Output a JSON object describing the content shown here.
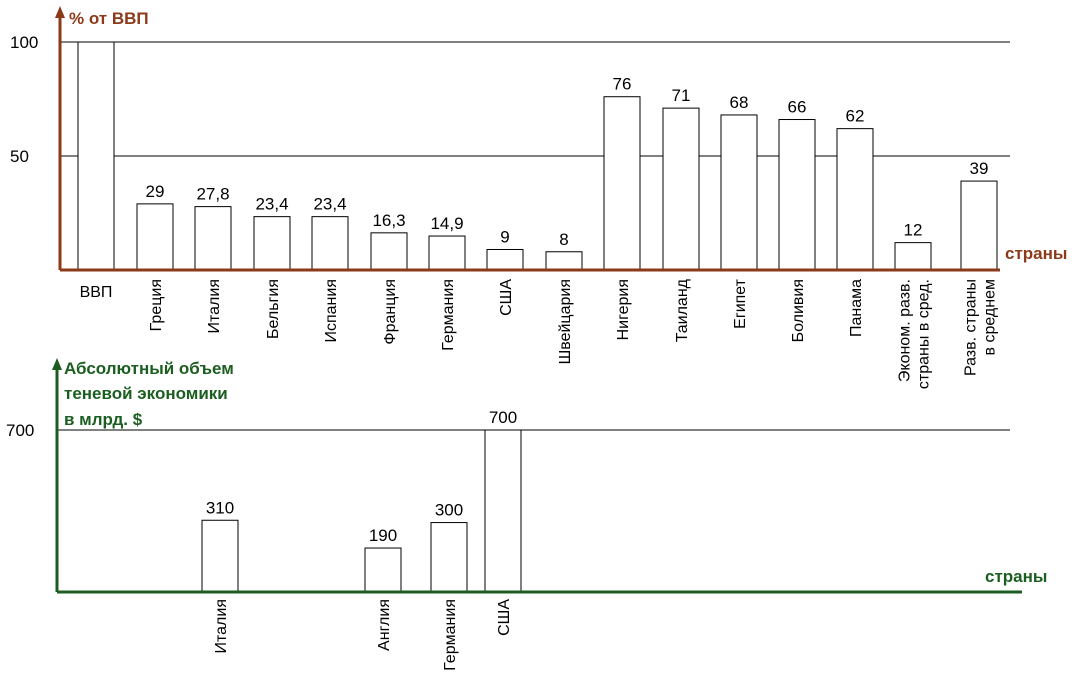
{
  "colors": {
    "top_axis": "#8b3a1a",
    "bottom_axis": "#1b5e20",
    "grid": "#000000",
    "bar_fill": "#ffffff",
    "bar_stroke": "#000000"
  },
  "chart_data": [
    {
      "type": "bar",
      "ylabel": "% от ВВП",
      "xlabel": "страны",
      "ylim": [
        0,
        100
      ],
      "yticks": [
        50,
        100
      ],
      "grid": true,
      "categories": [
        "ВВП",
        "Греция",
        "Италия",
        "Бельгия",
        "Испания",
        "Франция",
        "Германия",
        "США",
        "Швейцария",
        "Нигерия",
        "Таиланд",
        "Египет",
        "Боливия",
        "Панама",
        "Эконом. разв. страны в сред.",
        "Разв. страны в среднем"
      ],
      "category_lines": [
        [
          "ВВП"
        ],
        [
          "Греция"
        ],
        [
          "Италия"
        ],
        [
          "Бельгия"
        ],
        [
          "Испания"
        ],
        [
          "Франция"
        ],
        [
          "Германия"
        ],
        [
          "США"
        ],
        [
          "Швейцария"
        ],
        [
          "Нигерия"
        ],
        [
          "Таиланд"
        ],
        [
          "Египет"
        ],
        [
          "Боливия"
        ],
        [
          "Панама"
        ],
        [
          "Эконом. разв.",
          "страны в сред."
        ],
        [
          "Разв. страны",
          "в среднем"
        ]
      ],
      "values": [
        100,
        29,
        27.8,
        23.4,
        23.4,
        16.3,
        14.9,
        9,
        8,
        76,
        71,
        68,
        66,
        62,
        12,
        39
      ],
      "value_labels": [
        "",
        "29",
        "27,8",
        "23,4",
        "23,4",
        "16,3",
        "14,9",
        "9",
        "8",
        "76",
        "71",
        "68",
        "66",
        "62",
        "12",
        "39"
      ]
    },
    {
      "type": "bar",
      "ylabel_lines": [
        "Абсолютный объем",
        "теневой экономики",
        "в млрд. $"
      ],
      "xlabel": "страны",
      "ylim": [
        0,
        700
      ],
      "yticks": [
        700
      ],
      "grid": true,
      "categories": [
        "Италия",
        "Англия",
        "Германия",
        "США"
      ],
      "category_lines": [
        [
          "Италия"
        ],
        [
          "Англия"
        ],
        [
          "Германия"
        ],
        [
          "США"
        ]
      ],
      "values": [
        310,
        190,
        300,
        700
      ],
      "value_labels": [
        "310",
        "190",
        "300",
        "700"
      ]
    }
  ]
}
